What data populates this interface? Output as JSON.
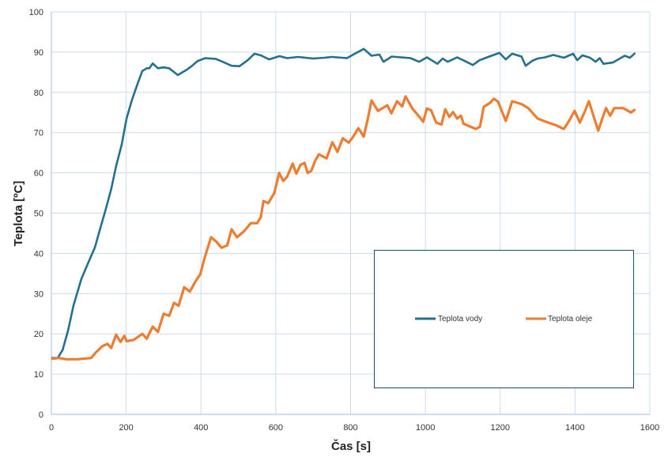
{
  "chart_data": {
    "type": "line",
    "title": "",
    "xlabel": "Čas [s]",
    "ylabel": "Teplota [ºC]",
    "xlim": [
      0,
      1600
    ],
    "ylim": [
      0,
      100
    ],
    "xticks": [
      "0",
      "200",
      "400",
      "600",
      "800",
      "1000",
      "1200",
      "1400",
      "1600"
    ],
    "yticks": [
      "0",
      "10",
      "20",
      "30",
      "40",
      "50",
      "60",
      "70",
      "80",
      "90",
      "100"
    ],
    "grid": true,
    "legend_placement": "bottom-right",
    "series": [
      {
        "name": "Teplota vody",
        "color": "#23708f",
        "points": [
          [
            0,
            14
          ],
          [
            17,
            14
          ],
          [
            30,
            16
          ],
          [
            45,
            21
          ],
          [
            59,
            27
          ],
          [
            80,
            33.6
          ],
          [
            100,
            38
          ],
          [
            116,
            41.4
          ],
          [
            130,
            46
          ],
          [
            144,
            50.5
          ],
          [
            160,
            56
          ],
          [
            173,
            61.7
          ],
          [
            188,
            67
          ],
          [
            201,
            73.5
          ],
          [
            215,
            78
          ],
          [
            230,
            82
          ],
          [
            243,
            85.3
          ],
          [
            255,
            86
          ],
          [
            262,
            86
          ],
          [
            271,
            87.2
          ],
          [
            285,
            86
          ],
          [
            300,
            86.2
          ],
          [
            315,
            86
          ],
          [
            338,
            84.3
          ],
          [
            360,
            85.5
          ],
          [
            375,
            86.5
          ],
          [
            391,
            87.8
          ],
          [
            412,
            88.5
          ],
          [
            440,
            88.3
          ],
          [
            460,
            87.5
          ],
          [
            482,
            86.6
          ],
          [
            503,
            86.5
          ],
          [
            525,
            88
          ],
          [
            543,
            89.6
          ],
          [
            560,
            89.2
          ],
          [
            582,
            88.2
          ],
          [
            610,
            89
          ],
          [
            630,
            88.5
          ],
          [
            660,
            88.8
          ],
          [
            700,
            88.4
          ],
          [
            730,
            88.6
          ],
          [
            750,
            88.8
          ],
          [
            790,
            88.5
          ],
          [
            835,
            90.8
          ],
          [
            856,
            89.1
          ],
          [
            877,
            89.4
          ],
          [
            888,
            87.6
          ],
          [
            910,
            88.9
          ],
          [
            934,
            88.7
          ],
          [
            960,
            88.5
          ],
          [
            983,
            87.6
          ],
          [
            1004,
            88.7
          ],
          [
            1032,
            87.1
          ],
          [
            1046,
            88.4
          ],
          [
            1060,
            87.6
          ],
          [
            1085,
            88.7
          ],
          [
            1105,
            87.8
          ],
          [
            1127,
            86.8
          ],
          [
            1145,
            88
          ],
          [
            1165,
            88.7
          ],
          [
            1198,
            89.8
          ],
          [
            1215,
            88.2
          ],
          [
            1232,
            89.6
          ],
          [
            1257,
            88.9
          ],
          [
            1268,
            86.6
          ],
          [
            1285,
            87.8
          ],
          [
            1300,
            88.4
          ],
          [
            1320,
            88.7
          ],
          [
            1342,
            89.3
          ],
          [
            1370,
            88.6
          ],
          [
            1395,
            89.6
          ],
          [
            1406,
            88
          ],
          [
            1420,
            89.2
          ],
          [
            1440,
            88.6
          ],
          [
            1455,
            87.6
          ],
          [
            1466,
            88.5
          ],
          [
            1476,
            87.1
          ],
          [
            1501,
            87.4
          ],
          [
            1520,
            88.4
          ],
          [
            1533,
            89.1
          ],
          [
            1547,
            88.6
          ],
          [
            1561,
            89.8
          ]
        ]
      },
      {
        "name": "Teplota oleje",
        "color": "#ed7d31",
        "points": [
          [
            0,
            13.8
          ],
          [
            20,
            14
          ],
          [
            40,
            13.7
          ],
          [
            70,
            13.7
          ],
          [
            106,
            14
          ],
          [
            120,
            15.5
          ],
          [
            137,
            17
          ],
          [
            150,
            17.5
          ],
          [
            160,
            16.5
          ],
          [
            173,
            19.8
          ],
          [
            185,
            18
          ],
          [
            195,
            19.5
          ],
          [
            201,
            18.2
          ],
          [
            220,
            18.5
          ],
          [
            243,
            20
          ],
          [
            255,
            18.8
          ],
          [
            271,
            21.8
          ],
          [
            285,
            20.5
          ],
          [
            300,
            25
          ],
          [
            315,
            24.5
          ],
          [
            328,
            27.7
          ],
          [
            340,
            27
          ],
          [
            355,
            31.6
          ],
          [
            370,
            30.5
          ],
          [
            385,
            33
          ],
          [
            398,
            34.8
          ],
          [
            410,
            39
          ],
          [
            427,
            44
          ],
          [
            440,
            43
          ],
          [
            455,
            41.4
          ],
          [
            470,
            42
          ],
          [
            482,
            46
          ],
          [
            496,
            44
          ],
          [
            515,
            45.5
          ],
          [
            533,
            47.5
          ],
          [
            550,
            47.5
          ],
          [
            560,
            49
          ],
          [
            567,
            53
          ],
          [
            580,
            52.5
          ],
          [
            596,
            55
          ],
          [
            609,
            60
          ],
          [
            620,
            58
          ],
          [
            630,
            59
          ],
          [
            645,
            62.3
          ],
          [
            655,
            59.8
          ],
          [
            666,
            62
          ],
          [
            677,
            62.5
          ],
          [
            685,
            60
          ],
          [
            695,
            60.5
          ],
          [
            705,
            63
          ],
          [
            715,
            64.6
          ],
          [
            736,
            63.6
          ],
          [
            751,
            67.6
          ],
          [
            765,
            65.2
          ],
          [
            779,
            68.6
          ],
          [
            795,
            67.5
          ],
          [
            807,
            69
          ],
          [
            821,
            71.1
          ],
          [
            835,
            69
          ],
          [
            845,
            73
          ],
          [
            856,
            78
          ],
          [
            873,
            75.4
          ],
          [
            898,
            76.8
          ],
          [
            909,
            74.8
          ],
          [
            924,
            77.8
          ],
          [
            938,
            76.5
          ],
          [
            947,
            79
          ],
          [
            965,
            76
          ],
          [
            983,
            74
          ],
          [
            994,
            72.7
          ],
          [
            1004,
            76
          ],
          [
            1015,
            75.6
          ],
          [
            1029,
            72.5
          ],
          [
            1043,
            72
          ],
          [
            1053,
            75.8
          ],
          [
            1064,
            73.9
          ],
          [
            1074,
            75.1
          ],
          [
            1085,
            73.5
          ],
          [
            1095,
            74.2
          ],
          [
            1102,
            72.2
          ],
          [
            1120,
            71.5
          ],
          [
            1135,
            70.9
          ],
          [
            1146,
            71.5
          ],
          [
            1156,
            76.4
          ],
          [
            1173,
            77.4
          ],
          [
            1183,
            78.4
          ],
          [
            1194,
            77.7
          ],
          [
            1215,
            72.9
          ],
          [
            1232,
            77.8
          ],
          [
            1257,
            77.1
          ],
          [
            1275,
            76.1
          ],
          [
            1300,
            73.5
          ],
          [
            1328,
            72.5
          ],
          [
            1350,
            71.8
          ],
          [
            1370,
            70.9
          ],
          [
            1384,
            72.9
          ],
          [
            1399,
            75.4
          ],
          [
            1413,
            72.5
          ],
          [
            1427,
            75.4
          ],
          [
            1437,
            77.8
          ],
          [
            1450,
            74
          ],
          [
            1462,
            70.5
          ],
          [
            1473,
            73.5
          ],
          [
            1483,
            76.1
          ],
          [
            1494,
            74.2
          ],
          [
            1505,
            76.1
          ],
          [
            1529,
            76.1
          ],
          [
            1550,
            75
          ],
          [
            1561,
            75.8
          ]
        ]
      }
    ]
  }
}
